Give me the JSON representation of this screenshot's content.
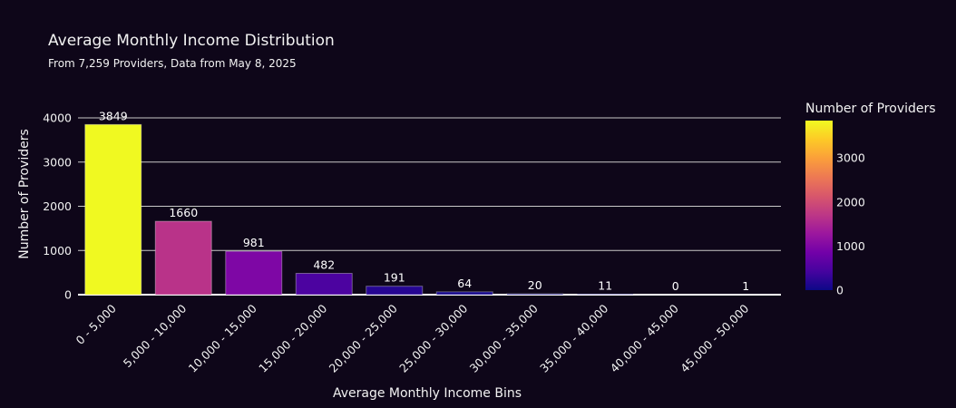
{
  "chart_data": {
    "type": "bar",
    "title": "Average Monthly Income Distribution",
    "subtitle": "From 7,259 Providers, Data from May 8, 2025",
    "xlabel": "Average Monthly Income Bins",
    "ylabel": "Number of Providers",
    "categories": [
      "0 - 5,000",
      "5,000 - 10,000",
      "10,000 - 15,000",
      "15,000 - 20,000",
      "20,000 - 25,000",
      "25,000 - 30,000",
      "30,000 - 35,000",
      "35,000 - 40,000",
      "40,000 - 45,000",
      "45,000 - 50,000"
    ],
    "values": [
      3849,
      1660,
      981,
      482,
      191,
      64,
      20,
      11,
      0,
      1
    ],
    "value_labels": [
      "3849",
      "1660",
      "981",
      "482",
      "191",
      "64",
      "20",
      "11",
      "0",
      "1"
    ],
    "ylim": [
      0,
      4000
    ],
    "y_ticks": [
      0,
      1000,
      2000,
      3000,
      4000
    ],
    "y_tick_labels": [
      "0",
      "1000",
      "2000",
      "3000",
      "4000"
    ],
    "grid": true,
    "colorbar": {
      "title": "Number of Providers",
      "range": [
        0,
        3849
      ],
      "ticks": [
        0,
        1000,
        2000,
        3000
      ],
      "tick_labels": [
        "0",
        "1000",
        "2000",
        "3000"
      ],
      "colorscale": [
        "#0d0887",
        "#46039f",
        "#7201a8",
        "#9c179e",
        "#bd3786",
        "#d8576b",
        "#ed7953",
        "#fb9f3a",
        "#fdca26",
        "#f0f921"
      ]
    },
    "colors": {
      "background": "#0e0619",
      "grid": "#c8c8c8",
      "text": "#f2f2f2"
    }
  }
}
